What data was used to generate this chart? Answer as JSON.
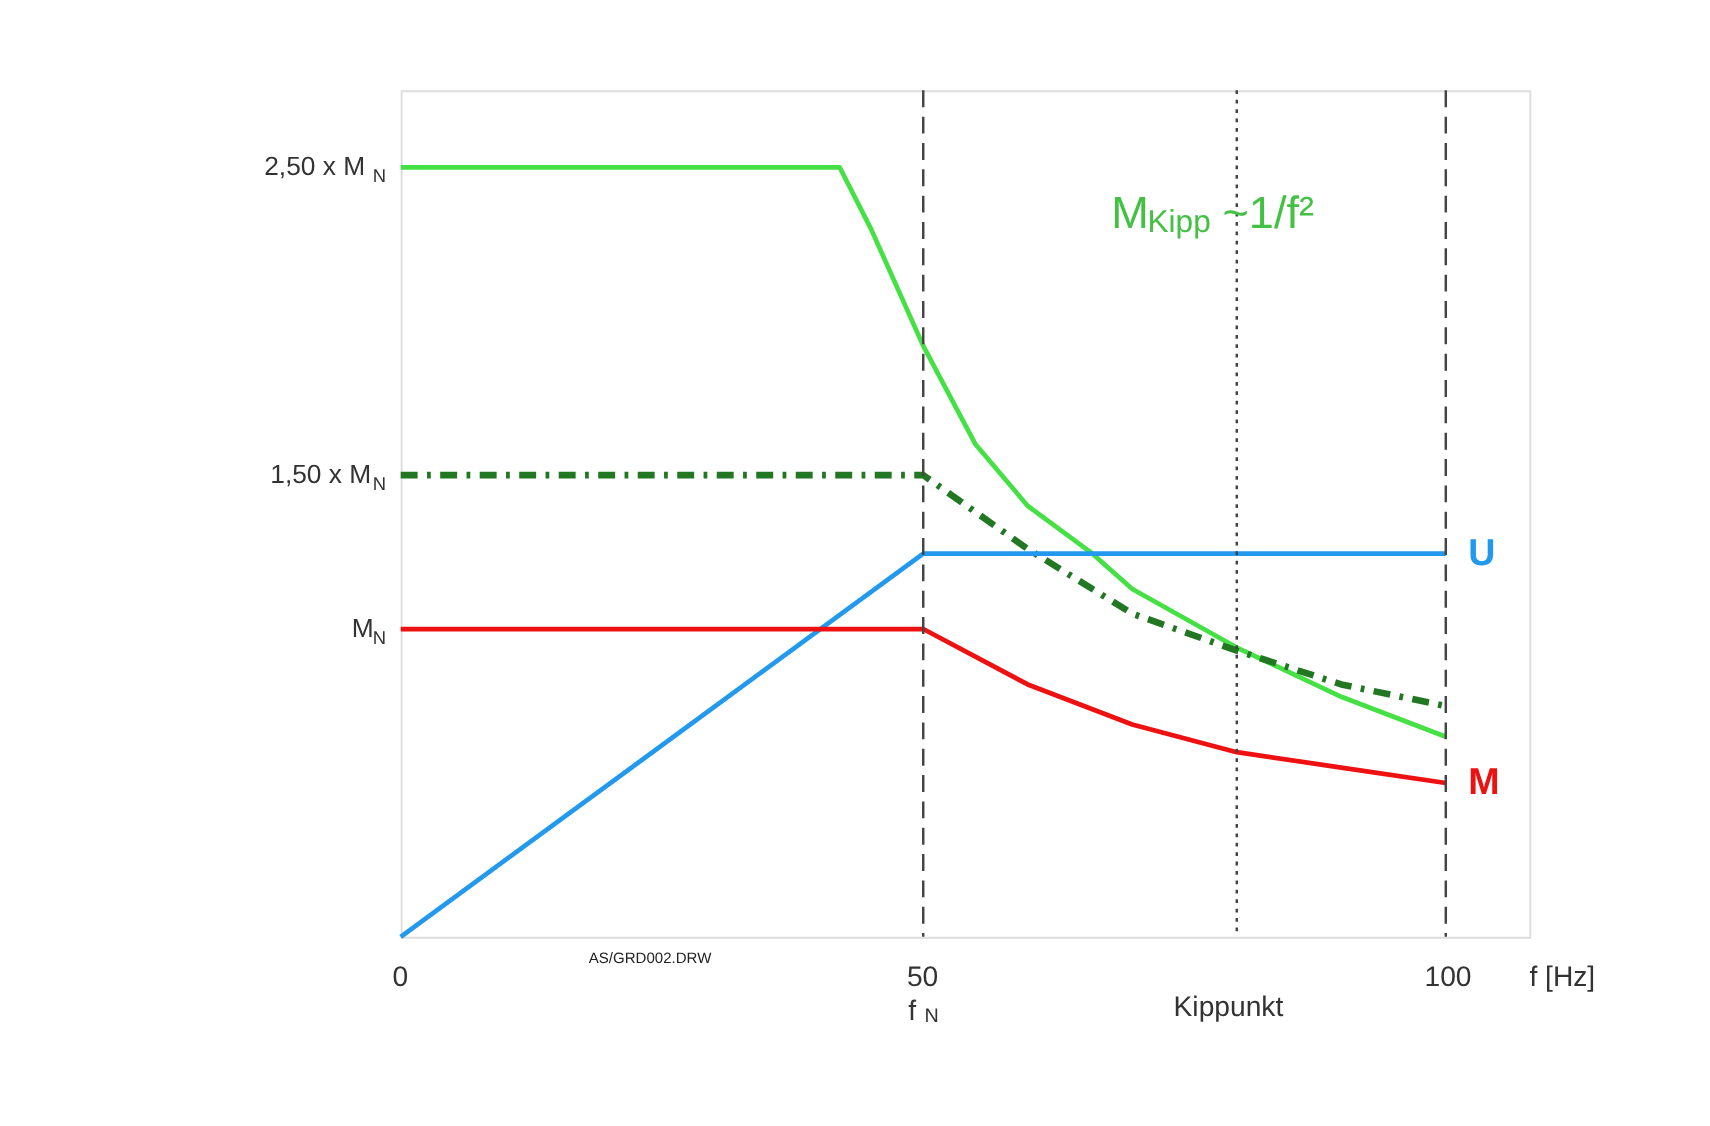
{
  "chart_data": {
    "type": "line",
    "xlabel": "f [Hz]",
    "xlim": [
      0,
      108
    ],
    "ylim": [
      0,
      2.75
    ],
    "xticks": [
      0,
      {
        "value": 50,
        "label": "50\nf$_{N}$"
      },
      100
    ],
    "yticks": [
      {
        "value": 1,
        "label": "M$_{N}$"
      },
      {
        "value": 1.5,
        "label": "1,50 x M$_{N}$"
      },
      {
        "value": 2.5,
        "label": "2,50 x M$_{N}$"
      }
    ],
    "grid": false,
    "marker": "none",
    "series": [
      {
        "color": "#44e044",
        "line_style": "solid",
        "x": [
          0,
          42,
          45,
          50,
          55,
          60,
          66,
          70,
          80,
          90,
          100
        ],
        "values": [
          2.5,
          2.5,
          2.3,
          1.92,
          1.6,
          1.4,
          1.25,
          1.13,
          0.94,
          0.78,
          0.65
        ]
      },
      {
        "color": "#227722",
        "line_style": "dashed",
        "x": [
          0,
          50,
          60,
          70,
          80,
          90,
          100
        ],
        "values": [
          1.5,
          1.5,
          1.26,
          1.05,
          0.93,
          0.82,
          0.75
        ]
      },
      {
        "name": "U",
        "color": "#2299ee",
        "line_style": "solid",
        "x": [
          0,
          50,
          100
        ],
        "values": [
          0,
          1.245,
          1.245
        ]
      },
      {
        "name": "M",
        "color": "#ee1111",
        "line_style": "solid",
        "x": [
          0,
          50,
          60,
          70,
          80,
          90,
          100
        ],
        "values": [
          1,
          1,
          0.82,
          0.69,
          0.6,
          0.55,
          0.5
        ]
      }
    ],
    "ref_lines": [
      {
        "axis": "x",
        "value": 50,
        "line_style": "dashed",
        "color": "#444444"
      },
      {
        "axis": "x",
        "value": 80,
        "line_style": "dotted",
        "color": "#444444",
        "label": "Kippunkt"
      },
      {
        "axis": "x",
        "value": 100,
        "line_style": "dashed",
        "color": "#444444"
      }
    ],
    "annotations": [
      "M$_{Kipp}$ ~1/f²",
      "AS/GRD002.DRW"
    ]
  }
}
